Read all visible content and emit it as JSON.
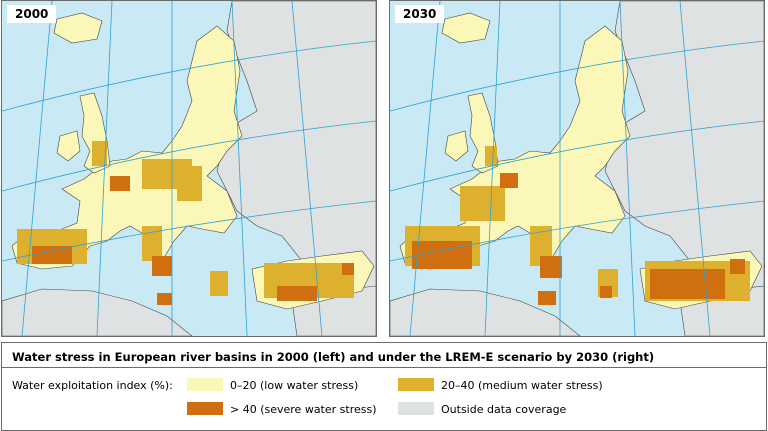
{
  "maps": [
    {
      "year": "2000"
    },
    {
      "year": "2030"
    }
  ],
  "legend": {
    "title": "Water stress in European river basins in 2000 (left) and under the LREM-E scenario by 2030 (right)",
    "label": "Water exploitation index (%):",
    "items": [
      {
        "label": "0–20 (low water stress)",
        "color": "#fbf7b9"
      },
      {
        "label": "20–40 (medium water stress)",
        "color": "#ddb12e"
      },
      {
        "label": "> 40 (severe water stress)",
        "color": "#d06f10"
      },
      {
        "label": "Outside data coverage",
        "color": "#dfe2e2"
      }
    ]
  },
  "colors": {
    "sea": "#c9e9f4",
    "land_outside": "#dfe2e2",
    "graticule": "#2ea3d4"
  }
}
